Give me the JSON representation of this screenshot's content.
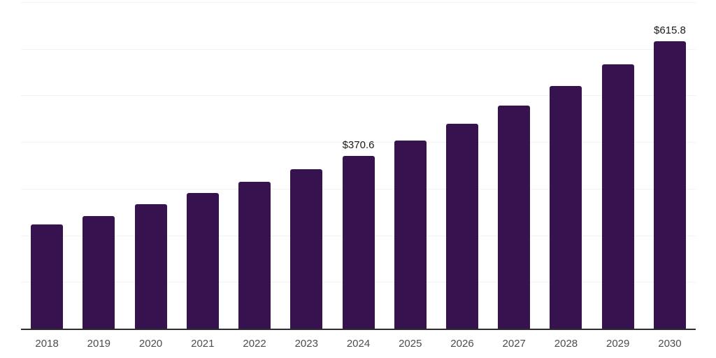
{
  "chart_data": {
    "type": "bar",
    "title": "",
    "xlabel": "",
    "ylabel": "",
    "categories": [
      "2018",
      "2019",
      "2020",
      "2021",
      "2022",
      "2023",
      "2024",
      "2025",
      "2026",
      "2027",
      "2028",
      "2029",
      "2030"
    ],
    "values": [
      224,
      242,
      267,
      291,
      315,
      342,
      370.6,
      404,
      439,
      478,
      520,
      566,
      615.8
    ],
    "data_labels": [
      "",
      "",
      "",
      "",
      "",
      "",
      "$370.6",
      "",
      "",
      "",
      "",
      "",
      "$615.8"
    ],
    "ylim": [
      0,
      700
    ],
    "gridline_interval": 100,
    "grid": true,
    "legend_position": "none"
  },
  "colors": {
    "background": "#ffffff",
    "bar": "#36124E",
    "gridline": "#f2f2f2",
    "axis_line": "#2e2e2e",
    "tick_label": "#4d4d4d",
    "data_label": "#1a1a1a"
  }
}
